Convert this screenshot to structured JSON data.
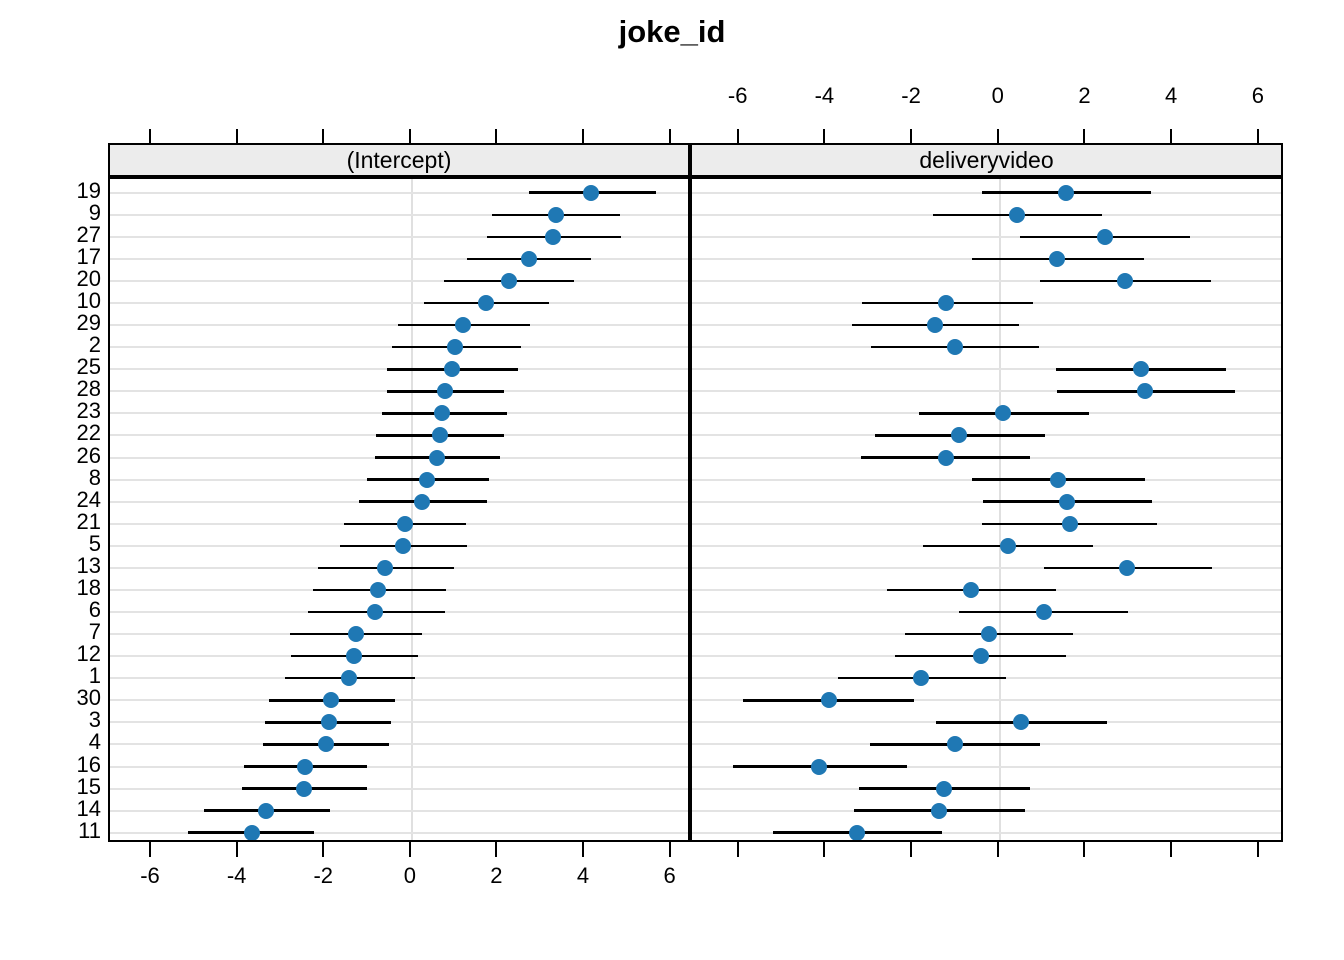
{
  "chart_data": {
    "type": "dotplot",
    "title": "joke_id",
    "subtitle": "",
    "grouping_variable": "joke_id",
    "x_ticks": [
      -6,
      -4,
      -2,
      0,
      2,
      4,
      6
    ],
    "row_labels": [
      "19",
      "9",
      "27",
      "17",
      "20",
      "10",
      "29",
      "2",
      "25",
      "28",
      "23",
      "22",
      "26",
      "8",
      "24",
      "21",
      "5",
      "13",
      "18",
      "6",
      "7",
      "12",
      "1",
      "30",
      "3",
      "4",
      "16",
      "15",
      "14",
      "11"
    ],
    "legend": "none",
    "colors": {
      "point": "#1F78B4",
      "interval_line": "#000000",
      "grid": "#E3E3E3",
      "zero_line": "#E0E0E0",
      "strip_background": "#ECECEC",
      "border": "#000000",
      "background": "#FFFFFF"
    },
    "panels": [
      {
        "label": "(Intercept)",
        "x_range": [
          -6.97,
          6.47
        ],
        "axis_labels_position": "bottom",
        "points": [
          {
            "id": "19",
            "est": 4.14,
            "lo": 2.7,
            "hi": 5.63
          },
          {
            "id": "9",
            "est": 3.33,
            "lo": 1.85,
            "hi": 4.8
          },
          {
            "id": "27",
            "est": 3.27,
            "lo": 1.74,
            "hi": 4.82
          },
          {
            "id": "17",
            "est": 2.71,
            "lo": 1.28,
            "hi": 4.14
          },
          {
            "id": "20",
            "est": 2.25,
            "lo": 0.74,
            "hi": 3.75
          },
          {
            "id": "10",
            "est": 1.72,
            "lo": 0.27,
            "hi": 3.16
          },
          {
            "id": "29",
            "est": 1.19,
            "lo": -0.31,
            "hi": 2.73
          },
          {
            "id": "2",
            "est": 1.0,
            "lo": -0.45,
            "hi": 2.53
          },
          {
            "id": "25",
            "est": 0.92,
            "lo": -0.58,
            "hi": 2.46
          },
          {
            "id": "28",
            "est": 0.77,
            "lo": -0.57,
            "hi": 2.14
          },
          {
            "id": "23",
            "est": 0.7,
            "lo": -0.7,
            "hi": 2.19
          },
          {
            "id": "22",
            "est": 0.64,
            "lo": -0.82,
            "hi": 2.14
          },
          {
            "id": "26",
            "est": 0.58,
            "lo": -0.85,
            "hi": 2.03
          },
          {
            "id": "8",
            "est": 0.35,
            "lo": -1.04,
            "hi": 1.78
          },
          {
            "id": "24",
            "est": 0.23,
            "lo": -1.21,
            "hi": 1.74
          },
          {
            "id": "21",
            "est": -0.16,
            "lo": -1.56,
            "hi": 1.24
          },
          {
            "id": "5",
            "est": -0.2,
            "lo": -1.67,
            "hi": 1.28
          },
          {
            "id": "13",
            "est": -0.61,
            "lo": -2.17,
            "hi": 0.97
          },
          {
            "id": "18",
            "est": -0.79,
            "lo": -2.28,
            "hi": 0.79
          },
          {
            "id": "6",
            "est": -0.84,
            "lo": -2.4,
            "hi": 0.76
          },
          {
            "id": "7",
            "est": -1.3,
            "lo": -2.82,
            "hi": 0.23
          },
          {
            "id": "12",
            "est": -1.33,
            "lo": -2.78,
            "hi": 0.14
          },
          {
            "id": "1",
            "est": -1.44,
            "lo": -2.93,
            "hi": 0.07
          },
          {
            "id": "30",
            "est": -1.87,
            "lo": -3.3,
            "hi": -0.4
          },
          {
            "id": "3",
            "est": -1.92,
            "lo": -3.39,
            "hi": -0.49
          },
          {
            "id": "4",
            "est": -1.99,
            "lo": -3.43,
            "hi": -0.52
          },
          {
            "id": "16",
            "est": -2.46,
            "lo": -3.88,
            "hi": -1.03
          },
          {
            "id": "15",
            "est": -2.49,
            "lo": -3.92,
            "hi": -1.04
          },
          {
            "id": "14",
            "est": -3.36,
            "lo": -4.81,
            "hi": -1.9
          },
          {
            "id": "11",
            "est": -3.7,
            "lo": -5.18,
            "hi": -2.25
          }
        ]
      },
      {
        "label": "deliveryvideo",
        "x_range": [
          -7.1,
          6.58
        ],
        "axis_labels_position": "top",
        "points": [
          {
            "id": "19",
            "est": 1.52,
            "lo": -0.42,
            "hi": 3.48
          },
          {
            "id": "9",
            "est": 0.4,
            "lo": -1.54,
            "hi": 2.36
          },
          {
            "id": "27",
            "est": 2.43,
            "lo": 0.47,
            "hi": 4.39
          },
          {
            "id": "17",
            "est": 1.32,
            "lo": -0.64,
            "hi": 3.32
          },
          {
            "id": "20",
            "est": 2.89,
            "lo": 0.92,
            "hi": 4.87
          },
          {
            "id": "10",
            "est": -1.24,
            "lo": -3.18,
            "hi": 0.77
          },
          {
            "id": "29",
            "est": -1.49,
            "lo": -3.41,
            "hi": 0.44
          },
          {
            "id": "2",
            "est": -1.04,
            "lo": -2.97,
            "hi": 0.9
          },
          {
            "id": "25",
            "est": 3.25,
            "lo": 1.29,
            "hi": 5.21
          },
          {
            "id": "28",
            "est": 3.36,
            "lo": 1.32,
            "hi": 5.42
          },
          {
            "id": "23",
            "est": 0.08,
            "lo": -1.86,
            "hi": 2.06
          },
          {
            "id": "22",
            "est": -0.93,
            "lo": -2.88,
            "hi": 1.04
          },
          {
            "id": "26",
            "est": -1.25,
            "lo": -3.21,
            "hi": 0.7
          },
          {
            "id": "8",
            "est": 1.35,
            "lo": -0.63,
            "hi": 3.36
          },
          {
            "id": "24",
            "est": 1.56,
            "lo": -0.38,
            "hi": 3.52
          },
          {
            "id": "21",
            "est": 1.63,
            "lo": -0.4,
            "hi": 3.63
          },
          {
            "id": "5",
            "est": 0.19,
            "lo": -1.77,
            "hi": 2.14
          },
          {
            "id": "13",
            "est": 2.93,
            "lo": 1.02,
            "hi": 4.89
          },
          {
            "id": "18",
            "est": -0.67,
            "lo": -2.59,
            "hi": 1.29
          },
          {
            "id": "6",
            "est": 1.02,
            "lo": -0.93,
            "hi": 2.96
          },
          {
            "id": "7",
            "est": -0.26,
            "lo": -2.18,
            "hi": 1.7
          },
          {
            "id": "12",
            "est": -0.44,
            "lo": -2.41,
            "hi": 1.53
          },
          {
            "id": "1",
            "est": -1.81,
            "lo": -3.73,
            "hi": 0.15
          },
          {
            "id": "30",
            "est": -3.94,
            "lo": -5.92,
            "hi": -1.97
          },
          {
            "id": "3",
            "est": 0.49,
            "lo": -1.47,
            "hi": 2.47
          },
          {
            "id": "4",
            "est": -1.04,
            "lo": -3.0,
            "hi": 0.92
          },
          {
            "id": "16",
            "est": -4.18,
            "lo": -6.16,
            "hi": -2.15
          },
          {
            "id": "15",
            "est": -1.28,
            "lo": -3.24,
            "hi": 0.7
          },
          {
            "id": "14",
            "est": -1.4,
            "lo": -3.36,
            "hi": 0.59
          },
          {
            "id": "11",
            "est": -3.29,
            "lo": -5.23,
            "hi": -1.33
          }
        ]
      }
    ]
  }
}
